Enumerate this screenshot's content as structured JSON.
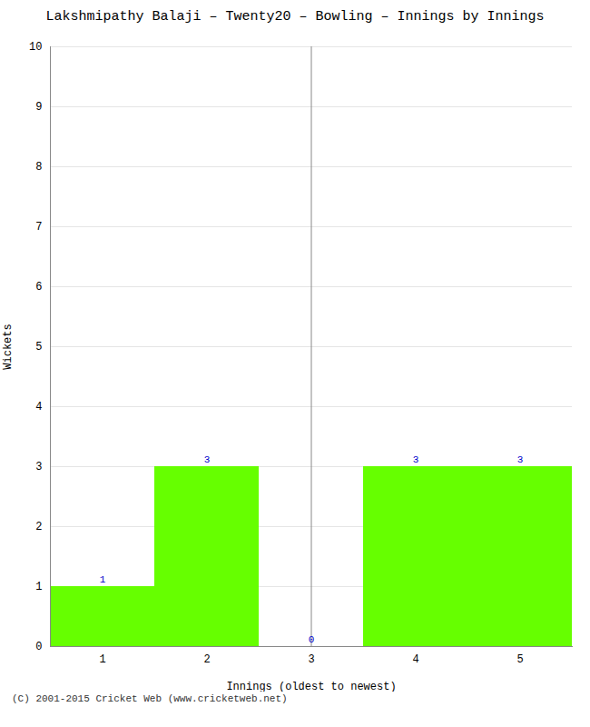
{
  "chart_data": {
    "type": "bar",
    "title": "Lakshmipathy Balaji – Twenty20 – Bowling – Innings by Innings",
    "xlabel": "Innings (oldest to newest)",
    "ylabel": "Wickets",
    "categories": [
      "1",
      "2",
      "3",
      "4",
      "5"
    ],
    "values": [
      1,
      3,
      0,
      3,
      3
    ],
    "color": "#66ff00",
    "ylim": [
      0,
      10
    ],
    "yticks": [
      0,
      1,
      2,
      3,
      4,
      5,
      6,
      7,
      8,
      9,
      10
    ],
    "grid": true,
    "data_labels": true,
    "annotations": [
      "(C) 2001-2015 Cricket Web (www.cricketweb.net)"
    ]
  }
}
